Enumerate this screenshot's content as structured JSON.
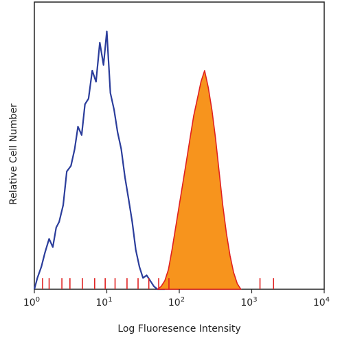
{
  "chart_data": {
    "type": "area",
    "title": "",
    "xlabel": "Log Fluoresence Intensity",
    "ylabel": "Relative Cell Number",
    "x_scale": "log",
    "xlim": [
      1,
      10000
    ],
    "ylim": [
      0,
      100
    ],
    "grid": false,
    "legend": "none",
    "x_ticks": [
      {
        "value": 1,
        "base": "10",
        "exp": "0"
      },
      {
        "value": 10,
        "base": "10",
        "exp": "1"
      },
      {
        "value": 100,
        "base": "10",
        "exp": "2"
      },
      {
        "value": 1000,
        "base": "10",
        "exp": "3"
      },
      {
        "value": 10000,
        "base": "10",
        "exp": "4"
      }
    ],
    "series": [
      {
        "style": "outline",
        "color": "#2b3d9b",
        "x": [
          1.0,
          1.1,
          1.25,
          1.4,
          1.6,
          1.8,
          2.0,
          2.2,
          2.5,
          2.8,
          3.2,
          3.6,
          4.0,
          4.5,
          5.0,
          5.6,
          6.3,
          7.1,
          8.0,
          9.0,
          10.0,
          11.2,
          12.6,
          14.1,
          15.8,
          17.8,
          20.0,
          22.4,
          25.1,
          28.2,
          31.6,
          35.5,
          39.8,
          44.7,
          50.1,
          56.2,
          63.1
        ],
        "y": [
          0,
          4,
          8,
          13,
          18,
          15,
          22,
          24,
          30,
          42,
          44,
          50,
          58,
          55,
          66,
          68,
          78,
          74,
          88,
          80,
          92,
          70,
          64,
          56,
          50,
          40,
          32,
          24,
          14,
          8,
          4,
          5,
          3,
          1,
          0,
          0,
          0
        ]
      },
      {
        "style": "filled",
        "color": "#f7941d",
        "edge_color": "#e02020",
        "x": [
          50.1,
          56.2,
          63.1,
          70.8,
          79.4,
          89.1,
          100.0,
          112.2,
          125.9,
          141.3,
          158.5,
          177.8,
          199.5,
          223.9,
          251.2,
          281.8,
          316.2,
          354.8,
          398.1,
          446.7,
          501.2,
          562.3,
          631.0,
          707.9
        ],
        "y": [
          0,
          1,
          3,
          7,
          14,
          22,
          30,
          38,
          46,
          54,
          62,
          68,
          74,
          78,
          72,
          64,
          54,
          42,
          30,
          20,
          12,
          6,
          2,
          0
        ]
      }
    ],
    "baseline_events_color": "#e02020"
  }
}
